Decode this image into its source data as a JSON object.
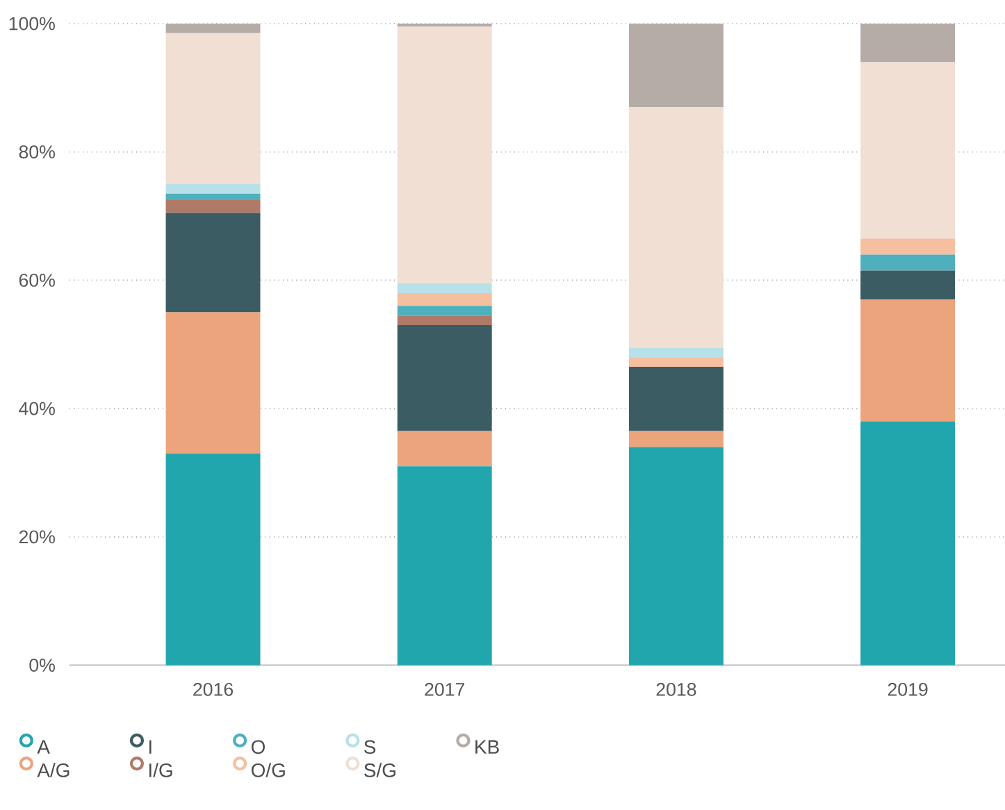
{
  "chart_data": {
    "type": "bar",
    "stacked": true,
    "categories": [
      "2016",
      "2017",
      "2018",
      "2019"
    ],
    "series": [
      {
        "name": "A",
        "color": "#22a6ae",
        "values": [
          33,
          31,
          34,
          38
        ]
      },
      {
        "name": "A/G",
        "color": "#eba47c",
        "values": [
          22,
          5.5,
          2.5,
          19
        ]
      },
      {
        "name": "I",
        "color": "#3b5c62",
        "values": [
          15.5,
          16.5,
          10,
          4.5
        ]
      },
      {
        "name": "I/G",
        "color": "#b07a68",
        "values": [
          2,
          1.5,
          0,
          0
        ]
      },
      {
        "name": "O",
        "color": "#4fb0bd",
        "values": [
          1,
          1.5,
          0,
          2.5
        ]
      },
      {
        "name": "O/G",
        "color": "#f5bfa0",
        "values": [
          0,
          2,
          1.5,
          2.5
        ]
      },
      {
        "name": "S",
        "color": "#b8e0e8",
        "values": [
          1.5,
          1.5,
          1.5,
          0
        ]
      },
      {
        "name": "S/G",
        "color": "#f0dfd2",
        "values": [
          23.5,
          40,
          37.5,
          27.5
        ]
      },
      {
        "name": "KB",
        "color": "#b5aca7",
        "values": [
          1.5,
          0.5,
          13,
          6
        ]
      }
    ],
    "ylim": [
      0,
      100
    ],
    "yticks": [
      {
        "value": 0,
        "label": "0%"
      },
      {
        "value": 20,
        "label": "20%"
      },
      {
        "value": 40,
        "label": "40%"
      },
      {
        "value": 60,
        "label": "60%"
      },
      {
        "value": 80,
        "label": "80%"
      },
      {
        "value": 100,
        "label": "100%"
      }
    ],
    "grid": "y",
    "legend": "bottom"
  }
}
